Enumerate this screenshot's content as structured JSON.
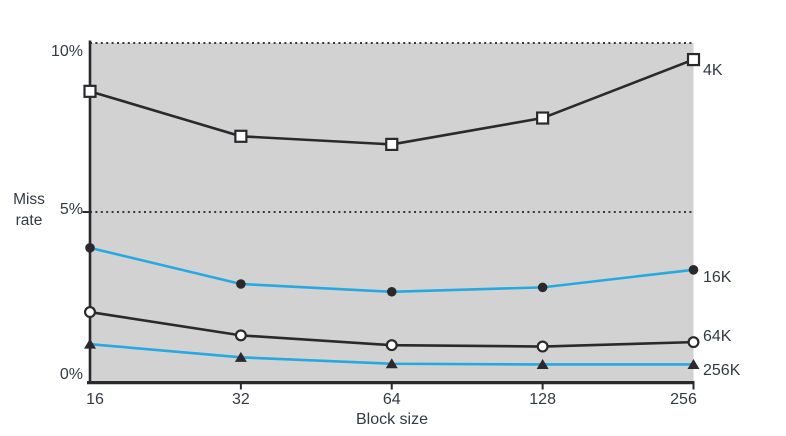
{
  "chart_data": {
    "type": "line",
    "xlabel": "Block size",
    "ylabel": "Miss rate",
    "x_scale": "categorical-powers-of-2",
    "categories": [
      "16",
      "32",
      "64",
      "128",
      "256"
    ],
    "ylim": [
      0,
      10
    ],
    "yticks": [
      {
        "value": 10,
        "label": "10%"
      },
      {
        "value": 5,
        "label": "5%"
      },
      {
        "value": 0,
        "label": "0%"
      }
    ],
    "dotted_gridlines_at": [
      10,
      5
    ],
    "legend_position": "labels-at-right-edge-of-lines",
    "plot_background": "#d2d2d3",
    "axis_color": "#2b292c",
    "gridline_color": "#38383a",
    "series": [
      {
        "name": "4K",
        "color": "#2b292c",
        "marker": "open-square",
        "marker_color": "#2b292c",
        "values": [
          8.57,
          7.24,
          7.0,
          7.78,
          9.51
        ]
      },
      {
        "name": "16K",
        "color": "#26a9e1",
        "marker": "filled-circle",
        "marker_color": "#2b292c",
        "values": [
          3.94,
          2.87,
          2.64,
          2.77,
          3.29
        ]
      },
      {
        "name": "64K",
        "color": "#2b292c",
        "marker": "open-circle",
        "marker_color": "#2b292c",
        "values": [
          2.04,
          1.35,
          1.06,
          1.02,
          1.15
        ]
      },
      {
        "name": "256K",
        "color": "#26a9e1",
        "marker": "filled-triangle",
        "marker_color": "#2b292c",
        "values": [
          1.09,
          0.7,
          0.51,
          0.49,
          0.49
        ]
      }
    ]
  }
}
